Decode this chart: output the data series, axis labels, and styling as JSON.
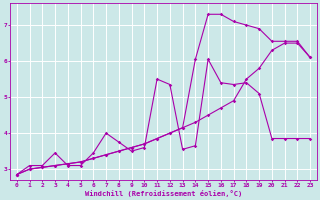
{
  "xlabel": "Windchill (Refroidissement éolien,°C)",
  "bg_color": "#cce8e8",
  "grid_color": "#ffffff",
  "line_color": "#aa00aa",
  "xlim": [
    -0.5,
    23.5
  ],
  "ylim": [
    2.7,
    7.6
  ],
  "yticks": [
    3,
    4,
    5,
    6,
    7
  ],
  "xticks": [
    0,
    1,
    2,
    3,
    4,
    5,
    6,
    7,
    8,
    9,
    10,
    11,
    12,
    13,
    14,
    15,
    16,
    17,
    18,
    19,
    20,
    21,
    22,
    23
  ],
  "s1_x": [
    0,
    1,
    2,
    3,
    4,
    5,
    6,
    7,
    8,
    9,
    10,
    11,
    12,
    13,
    14,
    15,
    16,
    17,
    18,
    19,
    20,
    21,
    22,
    23
  ],
  "s1_y": [
    2.85,
    3.1,
    3.1,
    3.45,
    3.1,
    3.1,
    3.45,
    4.0,
    3.75,
    3.5,
    3.6,
    5.5,
    5.35,
    3.55,
    3.65,
    6.05,
    5.4,
    5.35,
    5.4,
    5.1,
    3.85,
    3.85,
    3.85,
    3.85
  ],
  "s2_x": [
    0,
    1,
    2,
    3,
    4,
    5,
    6,
    7,
    8,
    9,
    10,
    11,
    12,
    13,
    14,
    15,
    16,
    17,
    18,
    19,
    20,
    21,
    22,
    23
  ],
  "s2_y": [
    2.85,
    3.0,
    3.05,
    3.1,
    3.15,
    3.2,
    3.3,
    3.4,
    3.5,
    3.6,
    3.7,
    3.85,
    4.0,
    4.15,
    6.05,
    7.3,
    7.3,
    7.1,
    7.0,
    6.9,
    6.55,
    6.55,
    6.55,
    6.1
  ],
  "s3_x": [
    0,
    1,
    2,
    3,
    4,
    5,
    6,
    7,
    8,
    9,
    10,
    11,
    12,
    13,
    14,
    15,
    16,
    17,
    18,
    19,
    20,
    21,
    22,
    23
  ],
  "s3_y": [
    2.85,
    3.0,
    3.05,
    3.1,
    3.15,
    3.2,
    3.3,
    3.4,
    3.5,
    3.6,
    3.7,
    3.85,
    4.0,
    4.15,
    4.3,
    4.5,
    4.7,
    4.9,
    5.5,
    5.8,
    6.3,
    6.5,
    6.5,
    6.1
  ]
}
